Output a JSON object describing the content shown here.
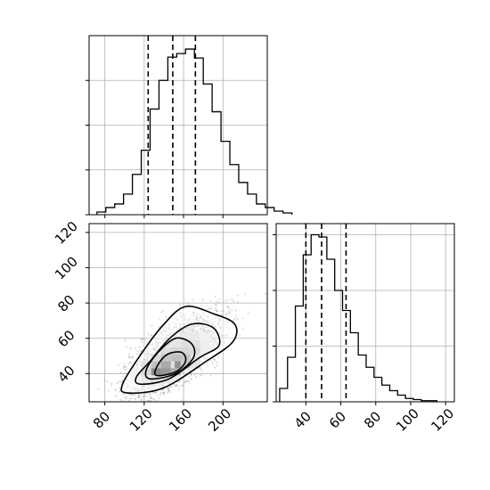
{
  "chart_data": [
    {
      "panel": "top-left",
      "type": "histogram",
      "title": "",
      "xlabel": "",
      "ylabel": "",
      "grid": true,
      "xlim": [
        64,
        245
      ],
      "bins": {
        "start": 72,
        "width": 9
      },
      "counts": [
        0.3,
        0.8,
        1.2,
        2.3,
        4.5,
        7.2,
        11.8,
        15.0,
        17.6,
        18.0,
        18.5,
        17.5,
        14.6,
        11.5,
        8.2,
        5.6,
        3.6,
        2.3,
        1.2,
        0.8,
        0.4,
        0.2
      ],
      "ylim": [
        0,
        20
      ],
      "quantiles": [
        124,
        149,
        172
      ]
    },
    {
      "panel": "bottom-left",
      "type": "scatter",
      "title": "",
      "xlabel": "",
      "ylabel": "",
      "grid": true,
      "xlim": [
        64,
        245
      ],
      "ylim": [
        24,
        125
      ],
      "x_ticks": [
        "80",
        "120",
        "160",
        "200"
      ],
      "y_ticks": [
        "40",
        "60",
        "80",
        "100",
        "120"
      ],
      "center": [
        150,
        50
      ],
      "contours": [
        [
          [
            103,
            29
          ],
          [
            140,
            32
          ],
          [
            183,
            47
          ],
          [
            210,
            58
          ],
          [
            212,
            68
          ],
          [
            190,
            74
          ],
          [
            162,
            78
          ],
          [
            140,
            68
          ],
          [
            118,
            52
          ],
          [
            98,
            34
          ]
        ],
        [
          [
            116,
            34
          ],
          [
            145,
            37
          ],
          [
            176,
            49
          ],
          [
            196,
            56
          ],
          [
            190,
            66
          ],
          [
            168,
            68
          ],
          [
            146,
            60
          ],
          [
            126,
            47
          ],
          [
            112,
            38
          ]
        ],
        [
          [
            126,
            37
          ],
          [
            152,
            40
          ],
          [
            170,
            49
          ],
          [
            168,
            57
          ],
          [
            152,
            60
          ],
          [
            134,
            52
          ],
          [
            122,
            42
          ]
        ],
        [
          [
            132,
            39
          ],
          [
            152,
            41
          ],
          [
            162,
            47
          ],
          [
            158,
            52
          ],
          [
            144,
            51
          ],
          [
            134,
            45
          ]
        ]
      ],
      "density_cells": [
        {
          "x": 132,
          "y": 41,
          "v": 1.0
        },
        {
          "x": 142,
          "y": 41,
          "v": 0.9
        },
        {
          "x": 156,
          "y": 45,
          "v": 0.95
        },
        {
          "x": 142,
          "y": 45,
          "v": 0.75
        },
        {
          "x": 152,
          "y": 41,
          "v": 0.7
        },
        {
          "x": 132,
          "y": 45,
          "v": 0.55
        },
        {
          "x": 162,
          "y": 49,
          "v": 0.5
        },
        {
          "x": 152,
          "y": 49,
          "v": 0.55
        },
        {
          "x": 142,
          "y": 49,
          "v": 0.5
        },
        {
          "x": 122,
          "y": 41,
          "v": 0.35
        },
        {
          "x": 162,
          "y": 45,
          "v": 0.45
        },
        {
          "x": 162,
          "y": 53,
          "v": 0.35
        },
        {
          "x": 152,
          "y": 53,
          "v": 0.35
        },
        {
          "x": 172,
          "y": 53,
          "v": 0.3
        },
        {
          "x": 172,
          "y": 57,
          "v": 0.25
        },
        {
          "x": 162,
          "y": 57,
          "v": 0.28
        },
        {
          "x": 152,
          "y": 57,
          "v": 0.22
        },
        {
          "x": 142,
          "y": 53,
          "v": 0.3
        },
        {
          "x": 132,
          "y": 49,
          "v": 0.3
        },
        {
          "x": 122,
          "y": 45,
          "v": 0.28
        },
        {
          "x": 122,
          "y": 37,
          "v": 0.2
        },
        {
          "x": 132,
          "y": 37,
          "v": 0.25
        },
        {
          "x": 142,
          "y": 37,
          "v": 0.25
        },
        {
          "x": 152,
          "y": 37,
          "v": 0.18
        },
        {
          "x": 172,
          "y": 49,
          "v": 0.25
        },
        {
          "x": 182,
          "y": 53,
          "v": 0.15
        },
        {
          "x": 182,
          "y": 57,
          "v": 0.15
        },
        {
          "x": 172,
          "y": 61,
          "v": 0.18
        },
        {
          "x": 162,
          "y": 61,
          "v": 0.18
        },
        {
          "x": 152,
          "y": 61,
          "v": 0.12
        },
        {
          "x": 182,
          "y": 61,
          "v": 0.12
        },
        {
          "x": 172,
          "y": 45,
          "v": 0.2
        },
        {
          "x": 112,
          "y": 41,
          "v": 0.12
        },
        {
          "x": 112,
          "y": 37,
          "v": 0.1
        }
      ]
    },
    {
      "panel": "bottom-right",
      "type": "histogram",
      "title": "",
      "xlabel": "",
      "ylabel": "",
      "grid": true,
      "xlim": [
        23,
        125
      ],
      "x_ticks": [
        "40",
        "60",
        "80",
        "100",
        "120"
      ],
      "bins": {
        "start": 25,
        "width": 4.5
      },
      "counts": [
        1.2,
        4.0,
        8.6,
        13.2,
        15.0,
        14.8,
        12.8,
        10.0,
        8.2,
        6.2,
        4.2,
        3.1,
        2.2,
        1.5,
        1.0,
        0.6,
        0.3,
        0.2,
        0.1,
        0.1
      ],
      "ylim": [
        0,
        16
      ],
      "quantiles": [
        40,
        49,
        63
      ]
    }
  ]
}
